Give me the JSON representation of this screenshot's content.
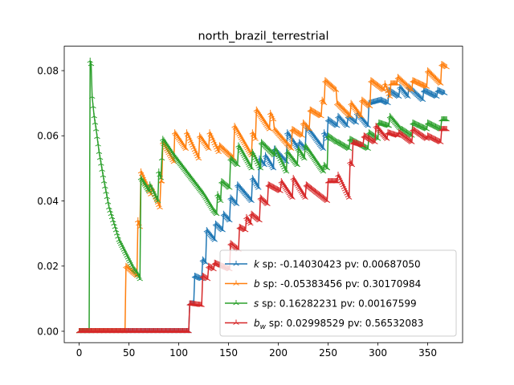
{
  "chart_data": {
    "type": "line",
    "title": "north_brazil_terrestrial",
    "xlabel": "",
    "ylabel": "",
    "xlim": [
      -15,
      385
    ],
    "ylim": [
      -0.0035,
      0.0875
    ],
    "xticks": [
      0,
      50,
      100,
      150,
      200,
      250,
      300,
      350
    ],
    "xtick_labels": [
      "0",
      "50",
      "100",
      "150",
      "200",
      "250",
      "300",
      "350"
    ],
    "yticks": [
      0.0,
      0.02,
      0.04,
      0.06,
      0.08
    ],
    "ytick_labels": [
      "0.00",
      "0.02",
      "0.04",
      "0.06",
      "0.08"
    ],
    "grid": false,
    "legend_position": "lower right",
    "legend": [
      {
        "symbol": "k",
        "sub": "",
        "text": " sp: -0.14030423 pv: 0.00687050"
      },
      {
        "symbol": "b",
        "sub": "",
        "text": " sp: -0.05383456 pv: 0.30170984"
      },
      {
        "symbol": "s",
        "sub": "",
        "text": " sp: 0.16282231 pv: 0.00167599"
      },
      {
        "symbol": "b",
        "sub": "w",
        "text": " sp: 0.02998529 pv: 0.56532083"
      }
    ],
    "series": [
      {
        "color": "#1f77b4",
        "points": [
          [
            0,
            0
          ],
          [
            110,
            0
          ],
          [
            111,
            0.0085
          ],
          [
            115,
            0.0085
          ],
          [
            116,
            0.017
          ],
          [
            123,
            0.016
          ],
          [
            124,
            0.022
          ],
          [
            127,
            0.021
          ],
          [
            128,
            0.031
          ],
          [
            136,
            0.028
          ],
          [
            137,
            0.033
          ],
          [
            144,
            0.031
          ],
          [
            145,
            0.036
          ],
          [
            151,
            0.034
          ],
          [
            152,
            0.041
          ],
          [
            158,
            0.039
          ],
          [
            159,
            0.045
          ],
          [
            173,
            0.04
          ],
          [
            174,
            0.047
          ],
          [
            180,
            0.044
          ],
          [
            181,
            0.053
          ],
          [
            186,
            0.051
          ],
          [
            187,
            0.054
          ],
          [
            195,
            0.05
          ],
          [
            196,
            0.056
          ],
          [
            208,
            0.052
          ],
          [
            209,
            0.061
          ],
          [
            220,
            0.056
          ],
          [
            221,
            0.058
          ],
          [
            227,
            0.056
          ],
          [
            228,
            0.063
          ],
          [
            245,
            0.056
          ],
          [
            246,
            0.061
          ],
          [
            249,
            0.059
          ],
          [
            250,
            0.065
          ],
          [
            259,
            0.063
          ],
          [
            260,
            0.066
          ],
          [
            269,
            0.063
          ],
          [
            270,
            0.066
          ],
          [
            278,
            0.064
          ],
          [
            279,
            0.067
          ],
          [
            290,
            0.063
          ],
          [
            291,
            0.07
          ],
          [
            303,
            0.071
          ],
          [
            310,
            0.07
          ],
          [
            311,
            0.074
          ],
          [
            321,
            0.072
          ],
          [
            322,
            0.075
          ],
          [
            330,
            0.072
          ],
          [
            331,
            0.075
          ],
          [
            345,
            0.071
          ],
          [
            346,
            0.074
          ],
          [
            359,
            0.072
          ],
          [
            360,
            0.074
          ],
          [
            367,
            0.073
          ]
        ]
      },
      {
        "color": "#ff7f0e",
        "points": [
          [
            0,
            0
          ],
          [
            46,
            0
          ],
          [
            47,
            0.02
          ],
          [
            58,
            0.017
          ],
          [
            59,
            0.034
          ],
          [
            61,
            0.032
          ],
          [
            62,
            0.049
          ],
          [
            72,
            0.042
          ],
          [
            73,
            0.044
          ],
          [
            81,
            0.038
          ],
          [
            82,
            0.046
          ],
          [
            83,
            0.046
          ],
          [
            84,
            0.058
          ],
          [
            95,
            0.052
          ],
          [
            96,
            0.061
          ],
          [
            107,
            0.056
          ],
          [
            108,
            0.061
          ],
          [
            120,
            0.053
          ],
          [
            121,
            0.06
          ],
          [
            130,
            0.056
          ],
          [
            131,
            0.061
          ],
          [
            140,
            0.055
          ],
          [
            141,
            0.057
          ],
          [
            155,
            0.053
          ],
          [
            156,
            0.063
          ],
          [
            173,
            0.054
          ],
          [
            174,
            0.061
          ],
          [
            177,
            0.059
          ],
          [
            178,
            0.068
          ],
          [
            191,
            0.062
          ],
          [
            192,
            0.067
          ],
          [
            195,
            0.065
          ],
          [
            196,
            0.062
          ],
          [
            213,
            0.056
          ],
          [
            214,
            0.062
          ],
          [
            224,
            0.06
          ],
          [
            225,
            0.064
          ],
          [
            231,
            0.062
          ],
          [
            232,
            0.068
          ],
          [
            243,
            0.066
          ],
          [
            244,
            0.071
          ],
          [
            246,
            0.07
          ],
          [
            247,
            0.077
          ],
          [
            258,
            0.074
          ],
          [
            259,
            0.07
          ],
          [
            272,
            0.066
          ],
          [
            273,
            0.07
          ],
          [
            283,
            0.066
          ],
          [
            284,
            0.071
          ],
          [
            292,
            0.069
          ],
          [
            293,
            0.077
          ],
          [
            306,
            0.074
          ],
          [
            307,
            0.076
          ],
          [
            312,
            0.072
          ],
          [
            313,
            0.076
          ],
          [
            319,
            0.076
          ],
          [
            320,
            0.078
          ],
          [
            334,
            0.074
          ],
          [
            335,
            0.077
          ],
          [
            349,
            0.075
          ],
          [
            350,
            0.08
          ],
          [
            363,
            0.076
          ],
          [
            364,
            0.082
          ],
          [
            369,
            0.081
          ]
        ]
      },
      {
        "color": "#2ca02c",
        "points": [
          [
            0,
            0
          ],
          [
            10,
            0
          ],
          [
            11,
            0.083
          ],
          [
            12,
            0.082
          ],
          [
            13,
            0.072
          ],
          [
            15,
            0.066
          ],
          [
            17,
            0.062
          ],
          [
            20,
            0.055
          ],
          [
            25,
            0.046
          ],
          [
            30,
            0.038
          ],
          [
            35,
            0.033
          ],
          [
            40,
            0.028
          ],
          [
            45,
            0.025
          ],
          [
            50,
            0.022
          ],
          [
            55,
            0.019
          ],
          [
            58,
            0.018
          ],
          [
            61,
            0.016
          ],
          [
            62,
            0.047
          ],
          [
            70,
            0.043
          ],
          [
            71,
            0.045
          ],
          [
            79,
            0.04
          ],
          [
            80,
            0.049
          ],
          [
            82,
            0.047
          ],
          [
            84,
            0.059
          ],
          [
            95,
            0.054
          ],
          [
            105,
            0.05
          ],
          [
            115,
            0.046
          ],
          [
            125,
            0.042
          ],
          [
            135,
            0.037
          ],
          [
            138,
            0.036
          ],
          [
            139,
            0.042
          ],
          [
            142,
            0.04
          ],
          [
            143,
            0.046
          ],
          [
            151,
            0.044
          ],
          [
            152,
            0.053
          ],
          [
            159,
            0.051
          ],
          [
            160,
            0.057
          ],
          [
            173,
            0.05
          ],
          [
            174,
            0.055
          ],
          [
            182,
            0.05
          ],
          [
            183,
            0.058
          ],
          [
            196,
            0.054
          ],
          [
            197,
            0.056
          ],
          [
            208,
            0.049
          ],
          [
            209,
            0.055
          ],
          [
            219,
            0.051
          ],
          [
            220,
            0.056
          ],
          [
            226,
            0.053
          ],
          [
            227,
            0.057
          ],
          [
            245,
            0.049
          ],
          [
            246,
            0.051
          ],
          [
            249,
            0.05
          ],
          [
            250,
            0.06
          ],
          [
            259,
            0.058
          ],
          [
            260,
            0.058
          ],
          [
            271,
            0.056
          ],
          [
            272,
            0.059
          ],
          [
            290,
            0.056
          ],
          [
            291,
            0.061
          ],
          [
            300,
            0.059
          ],
          [
            301,
            0.064
          ],
          [
            311,
            0.063
          ],
          [
            312,
            0.066
          ],
          [
            323,
            0.062
          ],
          [
            324,
            0.062
          ],
          [
            334,
            0.06
          ],
          [
            335,
            0.064
          ],
          [
            349,
            0.062
          ],
          [
            350,
            0.064
          ],
          [
            363,
            0.062
          ],
          [
            364,
            0.065
          ],
          [
            369,
            0.065
          ]
        ]
      },
      {
        "color": "#d62728",
        "points": [
          [
            0,
            0
          ],
          [
            110,
            0
          ],
          [
            111,
            0.0085
          ],
          [
            123,
            0.008
          ],
          [
            124,
            0.017
          ],
          [
            129,
            0.016
          ],
          [
            130,
            0.02
          ],
          [
            135,
            0.019
          ],
          [
            136,
            0.021
          ],
          [
            151,
            0.019
          ],
          [
            152,
            0.027
          ],
          [
            160,
            0.025
          ],
          [
            161,
            0.032
          ],
          [
            167,
            0.031
          ],
          [
            168,
            0.035
          ],
          [
            172,
            0.033
          ],
          [
            173,
            0.036
          ],
          [
            181,
            0.034
          ],
          [
            182,
            0.041
          ],
          [
            189,
            0.039
          ],
          [
            190,
            0.045
          ],
          [
            202,
            0.043
          ],
          [
            203,
            0.046
          ],
          [
            214,
            0.041
          ],
          [
            215,
            0.047
          ],
          [
            227,
            0.041
          ],
          [
            228,
            0.045
          ],
          [
            249,
            0.04
          ],
          [
            250,
            0.046
          ],
          [
            259,
            0.046
          ],
          [
            260,
            0.048
          ],
          [
            271,
            0.041
          ],
          [
            272,
            0.052
          ],
          [
            274,
            0.051
          ],
          [
            275,
            0.058
          ],
          [
            285,
            0.057
          ],
          [
            286,
            0.06
          ],
          [
            297,
            0.058
          ],
          [
            298,
            0.063
          ],
          [
            309,
            0.059
          ],
          [
            310,
            0.061
          ],
          [
            320,
            0.06
          ],
          [
            321,
            0.061
          ],
          [
            334,
            0.058
          ],
          [
            335,
            0.062
          ],
          [
            349,
            0.059
          ],
          [
            350,
            0.06
          ],
          [
            363,
            0.058
          ],
          [
            364,
            0.062
          ],
          [
            369,
            0.062
          ]
        ]
      }
    ]
  }
}
